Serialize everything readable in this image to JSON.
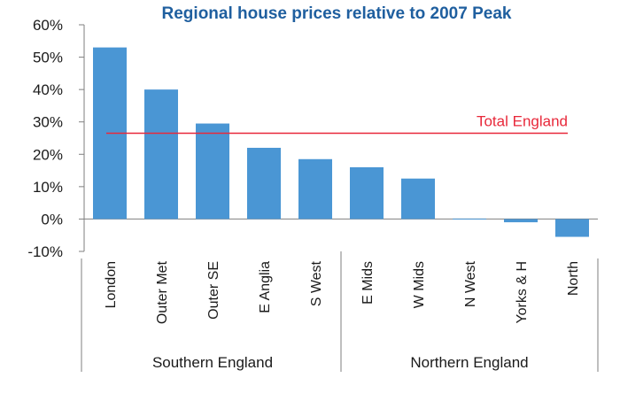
{
  "chart_data": {
    "type": "bar",
    "title": "Regional house prices relative to 2007 Peak",
    "categories": [
      "London",
      "Outer Met",
      "Outer SE",
      "E Anglia",
      "S West",
      "E Mids",
      "W Mids",
      "N West",
      "Yorks & H",
      "North"
    ],
    "values": [
      53,
      40,
      29.5,
      22,
      18.5,
      16,
      12.5,
      0,
      -1,
      -5.5
    ],
    "ylim": [
      -10,
      60
    ],
    "yticks": [
      -10,
      0,
      10,
      20,
      30,
      40,
      50,
      60
    ],
    "ytick_labels": [
      "-10%",
      "0%",
      "10%",
      "20%",
      "30%",
      "40%",
      "50%",
      "60%"
    ],
    "reference_line": {
      "label": "Total England",
      "value": 26.5
    },
    "groups": [
      {
        "label": "Southern England",
        "categories": [
          "London",
          "Outer Met",
          "Outer SE",
          "E Anglia",
          "S West"
        ]
      },
      {
        "label": "Northern England",
        "categories": [
          "E Mids",
          "W Mids",
          "N West",
          "Yorks & H",
          "North"
        ]
      }
    ],
    "grid": false
  },
  "colors": {
    "bar": "#4a96d4",
    "reference_line": "#e8283a",
    "title": "#1f5f9f",
    "axis": "#7f7f7f"
  }
}
